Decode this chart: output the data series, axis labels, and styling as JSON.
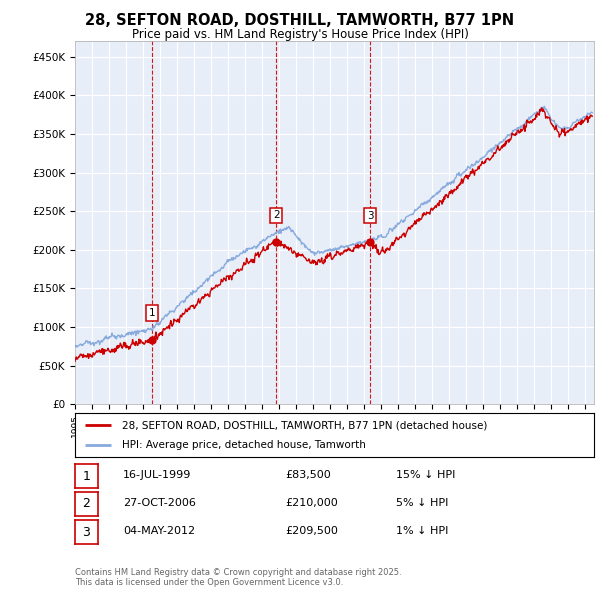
{
  "title": "28, SEFTON ROAD, DOSTHILL, TAMWORTH, B77 1PN",
  "subtitle": "Price paid vs. HM Land Registry's House Price Index (HPI)",
  "ylim": [
    0,
    470000
  ],
  "yticks": [
    0,
    50000,
    100000,
    150000,
    200000,
    250000,
    300000,
    350000,
    400000,
    450000
  ],
  "ytick_labels": [
    "£0",
    "£50K",
    "£100K",
    "£150K",
    "£200K",
    "£250K",
    "£300K",
    "£350K",
    "£400K",
    "£450K"
  ],
  "xlim": [
    1995,
    2025.5
  ],
  "sales": [
    {
      "date_num": 1999.54,
      "price": 83500,
      "label": "1"
    },
    {
      "date_num": 2006.82,
      "price": 210000,
      "label": "2"
    },
    {
      "date_num": 2012.34,
      "price": 209500,
      "label": "3"
    }
  ],
  "sale_vlines": [
    1999.54,
    2006.82,
    2012.34
  ],
  "legend_house": "28, SEFTON ROAD, DOSTHILL, TAMWORTH, B77 1PN (detached house)",
  "legend_hpi": "HPI: Average price, detached house, Tamworth",
  "table_rows": [
    {
      "num": "1",
      "date": "16-JUL-1999",
      "price": "£83,500",
      "hpi": "15% ↓ HPI"
    },
    {
      "num": "2",
      "date": "27-OCT-2006",
      "price": "£210,000",
      "hpi": "5% ↓ HPI"
    },
    {
      "num": "3",
      "date": "04-MAY-2012",
      "price": "£209,500",
      "hpi": "1% ↓ HPI"
    }
  ],
  "footer": "Contains HM Land Registry data © Crown copyright and database right 2025.\nThis data is licensed under the Open Government Licence v3.0.",
  "house_color": "#cc0000",
  "hpi_color": "#88aadd",
  "vline_color": "#cc0000",
  "chart_bg": "#e8eef8",
  "grid_color": "#ffffff"
}
